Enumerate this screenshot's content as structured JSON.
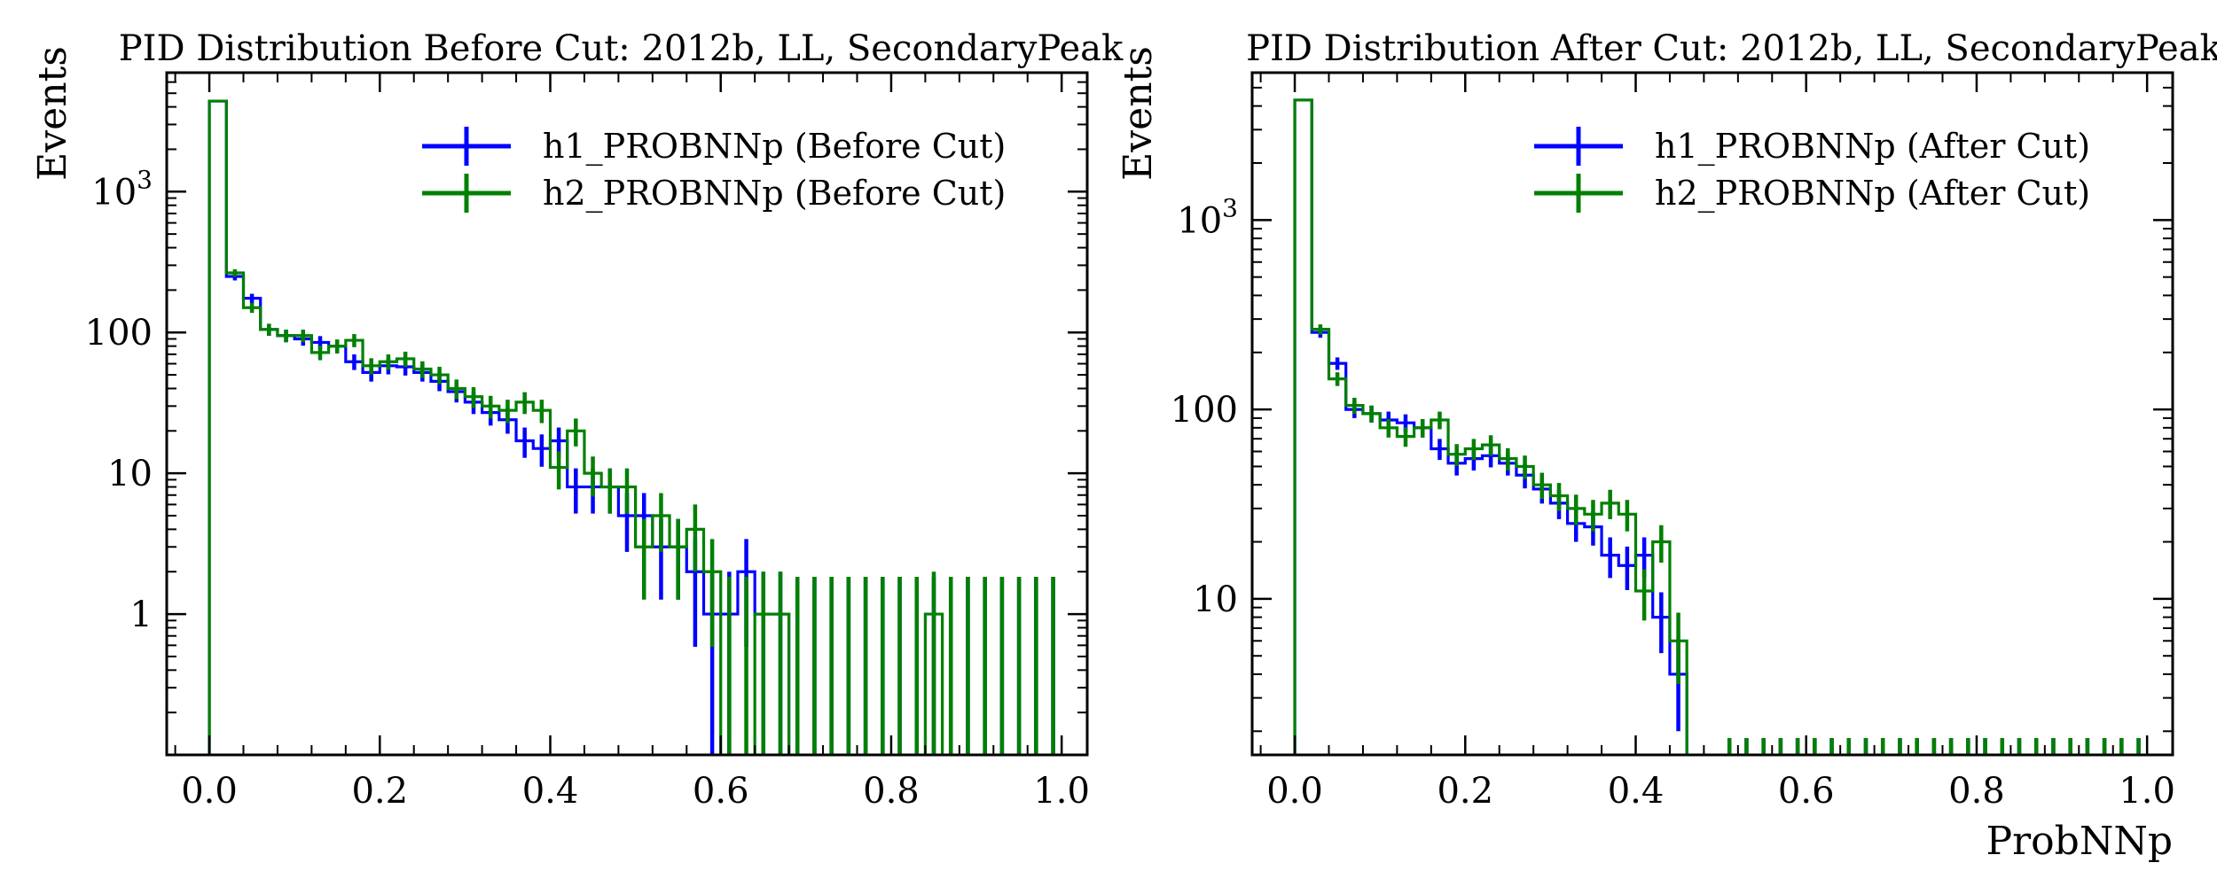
{
  "chart_data": [
    {
      "type": "histogram",
      "title": "PID Distribution Before Cut: 2012b, LL, SecondaryPeak",
      "xlabel": "",
      "ylabel": "Events",
      "xlim": [
        -0.05,
        1.03
      ],
      "ylim": [
        0.1,
        7000
      ],
      "yscale": "log",
      "xticks": [
        "0.0",
        "0.2",
        "0.4",
        "0.6",
        "0.8",
        "1.0"
      ],
      "yticks": [
        "1",
        "10",
        "100",
        "10^3"
      ],
      "legend_position": "top-right",
      "bin_width": 0.02,
      "series": [
        {
          "name": "h1_PROBNNp (Before Cut)",
          "color": "#0000ff",
          "values": [
            4400,
            250,
            175,
            105,
            95,
            90,
            85,
            80,
            62,
            52,
            58,
            57,
            52,
            45,
            38,
            32,
            27,
            24,
            17,
            15,
            17,
            8,
            8,
            8,
            5,
            5,
            3,
            3,
            2,
            1,
            1,
            2,
            1,
            1,
            0,
            0,
            0,
            0,
            0,
            0,
            0,
            0,
            0,
            0,
            0,
            0,
            0,
            0,
            0,
            0
          ]
        },
        {
          "name": "h2_PROBNNp (Before Cut)",
          "color": "#008000",
          "values": [
            4400,
            265,
            150,
            105,
            95,
            95,
            72,
            80,
            88,
            58,
            62,
            65,
            55,
            50,
            40,
            35,
            30,
            28,
            32,
            28,
            11,
            20,
            10,
            8,
            8,
            3,
            5,
            3,
            4,
            2,
            0,
            0,
            1,
            1,
            0,
            0,
            0,
            0,
            0,
            0,
            0,
            0,
            1,
            0,
            0,
            0,
            0,
            0,
            0,
            0
          ]
        }
      ]
    },
    {
      "type": "histogram",
      "title": "PID Distribution After Cut: 2012b, LL, SecondaryPeak",
      "xlabel": "ProbNNp",
      "ylabel": "Events",
      "xlim": [
        -0.05,
        1.03
      ],
      "ylim": [
        1.5,
        6000
      ],
      "yscale": "log",
      "xticks": [
        "0.0",
        "0.2",
        "0.4",
        "0.6",
        "0.8",
        "1.0"
      ],
      "yticks": [
        "10",
        "100",
        "10^3"
      ],
      "legend_position": "top-right",
      "bin_width": 0.02,
      "series": [
        {
          "name": "h1_PROBNNp (After Cut)",
          "color": "#0000ff",
          "values": [
            4300,
            255,
            175,
            100,
            95,
            88,
            85,
            80,
            62,
            52,
            55,
            57,
            52,
            45,
            38,
            32,
            25,
            24,
            17,
            15,
            17,
            8,
            4,
            0,
            0,
            0,
            0,
            0,
            0,
            0,
            0,
            0,
            0,
            0,
            0,
            0,
            0,
            0,
            0,
            0,
            0,
            0,
            0,
            0,
            0,
            0,
            0,
            0,
            0,
            0
          ]
        },
        {
          "name": "h2_PROBNNp (After Cut)",
          "color": "#008000",
          "values": [
            4300,
            265,
            145,
            105,
            95,
            80,
            72,
            80,
            88,
            58,
            62,
            65,
            55,
            50,
            40,
            35,
            30,
            28,
            32,
            28,
            11,
            20,
            6,
            0,
            0,
            0,
            0,
            0,
            0,
            0,
            0,
            0,
            0,
            0,
            0,
            0,
            0,
            0,
            0,
            0,
            0,
            0,
            0,
            0,
            0,
            0,
            0,
            0,
            0,
            0
          ]
        }
      ]
    }
  ]
}
